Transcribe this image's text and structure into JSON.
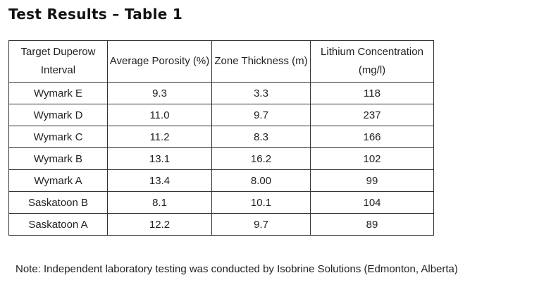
{
  "header": {
    "title": "Test Results – Table 1"
  },
  "table": {
    "columns": [
      "Target Duperow Interval",
      "Average Porosity (%)",
      "Zone Thickness (m)",
      "Lithium Concentration (mg/l)"
    ],
    "rows": [
      [
        "Wymark E",
        "9.3",
        "3.3",
        "118"
      ],
      [
        "Wymark D",
        "11.0",
        "9.7",
        "237"
      ],
      [
        "Wymark C",
        "11.2",
        "8.3",
        "166"
      ],
      [
        "Wymark B",
        "13.1",
        "16.2",
        "102"
      ],
      [
        "Wymark A",
        "13.4",
        "8.00",
        "99"
      ],
      [
        "Saskatoon B",
        "8.1",
        "10.1",
        "104"
      ],
      [
        "Saskatoon A",
        "12.2",
        "9.7",
        "89"
      ]
    ]
  },
  "note": "Note: Independent laboratory testing was conducted by Isobrine Solutions (Edmonton, Alberta)"
}
